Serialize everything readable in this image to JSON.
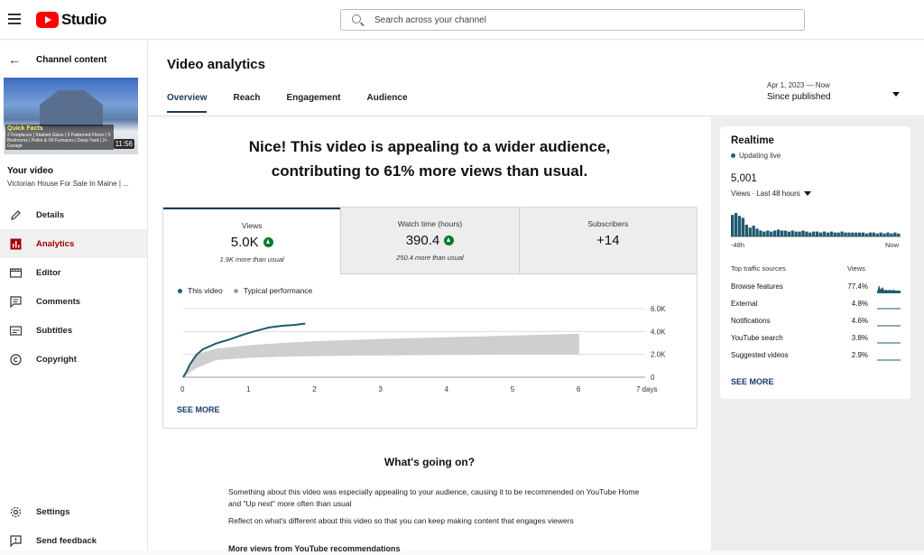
{
  "topbar": {
    "logo_text": "Studio",
    "search_placeholder": "Search across your channel"
  },
  "sidebar": {
    "back_label": "Channel content",
    "thumbnail": {
      "headline": "Quick Facts",
      "details": "2 Fireplaces | Stained Glass | 3 Patterned Floors | 5 Bedrooms | Pellet & Oil Furnaces | Deep Yard | 2+ Garage",
      "duration": "11:56"
    },
    "your_video_label": "Your video",
    "video_title": "Victorian House For Sale In Maine | ...",
    "nav": [
      {
        "label": "Details",
        "icon": "pencil-icon"
      },
      {
        "label": "Analytics",
        "icon": "analytics-icon",
        "active": true
      },
      {
        "label": "Editor",
        "icon": "film-icon"
      },
      {
        "label": "Comments",
        "icon": "comment-icon"
      },
      {
        "label": "Subtitles",
        "icon": "subtitles-icon"
      },
      {
        "label": "Copyright",
        "icon": "copyright-icon"
      }
    ],
    "nav_bottom": [
      {
        "label": "Settings",
        "icon": "gear-icon"
      },
      {
        "label": "Send feedback",
        "icon": "feedback-icon"
      }
    ]
  },
  "header": {
    "title": "Video analytics",
    "tabs": [
      "Overview",
      "Reach",
      "Engagement",
      "Audience"
    ],
    "active_tab": "Overview",
    "date_range_sub": "Apr 1, 2023 — Now",
    "date_range_value": "Since published"
  },
  "main": {
    "headline_line1": "Nice! This video is appealing to a wider audience,",
    "headline_line2": "contributing to 61% more views than usual.",
    "metrics": [
      {
        "label": "Views",
        "value": "5.0K",
        "note": "1.9K more than usual",
        "up": true
      },
      {
        "label": "Watch time (hours)",
        "value": "390.4",
        "note": "250.4 more than usual",
        "up": true
      },
      {
        "label": "Subscribers",
        "value": "+14",
        "note": "",
        "up": false
      }
    ],
    "legend": [
      {
        "name": "This video",
        "color": "#1f5a6e"
      },
      {
        "name": "Typical performance",
        "color": "#9e9e9e"
      }
    ],
    "see_more": "SEE MORE",
    "whats_going_on": "What's going on?",
    "para1": "Something about this video was especially appealing to your audience, causing it to be recommended on YouTube Home and \"Up next\" more often than usual",
    "para2": "Reflect on what's different about this video so that you can keep making content that engages viewers",
    "cut_line": "More views from YouTube recommendations"
  },
  "chart_data": [
    {
      "type": "line",
      "title": "",
      "xlabel": "",
      "ylabel": "",
      "x_ticks": [
        "0",
        "1",
        "2",
        "3",
        "4",
        "5",
        "6",
        "7 days"
      ],
      "y_ticks": [
        "0",
        "2.0K",
        "4.0K",
        "6.0K"
      ],
      "xlim": [
        0,
        7
      ],
      "ylim": [
        0,
        6000
      ],
      "grid": true,
      "legend_position": "top-left",
      "series": [
        {
          "name": "This video",
          "color": "#1f5a6e",
          "x": [
            0,
            0.05,
            0.1,
            0.2,
            0.3,
            0.5,
            0.7,
            0.9,
            1.1,
            1.3,
            1.5,
            1.7,
            1.85
          ],
          "y": [
            0,
            500,
            1100,
            1950,
            2450,
            2950,
            3300,
            3700,
            4050,
            4350,
            4500,
            4580,
            4700
          ]
        },
        {
          "name": "Typical performance",
          "color": "#cfcfcf",
          "type": "band",
          "x": [
            0,
            0.2,
            0.5,
            1,
            1.5,
            2,
            3,
            4,
            5,
            6
          ],
          "lower": [
            0,
            800,
            1500,
            1700,
            1800,
            1850,
            1900,
            1950,
            1980,
            2000
          ],
          "upper": [
            0,
            2000,
            2500,
            2800,
            3000,
            3150,
            3350,
            3500,
            3650,
            3800
          ]
        }
      ]
    },
    {
      "type": "bar",
      "title": "Realtime",
      "subtitle": "Views · Last 48 hours",
      "x_ticks": [
        "-48h",
        "Now"
      ],
      "values": [
        22,
        24,
        21,
        19,
        12,
        9,
        11,
        8,
        6,
        5,
        6,
        5,
        6,
        7,
        6,
        6,
        5,
        6,
        5,
        5,
        6,
        5,
        4,
        5,
        5,
        4,
        5,
        4,
        5,
        4,
        4,
        5,
        4,
        4,
        4,
        4,
        4,
        4,
        3,
        4,
        4,
        3,
        4,
        3,
        4,
        3,
        4,
        3
      ]
    }
  ],
  "realtime": {
    "title": "Realtime",
    "status": "Updating live",
    "views": "5,001",
    "range_label": "Views · Last 48 hours",
    "axis_start": "-48h",
    "axis_end": "Now",
    "traffic_header": "Top traffic sources",
    "traffic_views_header": "Views",
    "traffic": [
      {
        "source": "Browse features",
        "pct": "77.4%"
      },
      {
        "source": "External",
        "pct": "4.8%"
      },
      {
        "source": "Notifications",
        "pct": "4.6%"
      },
      {
        "source": "YouTube search",
        "pct": "3.8%"
      },
      {
        "source": "Suggested videos",
        "pct": "2.9%"
      }
    ],
    "see_more": "SEE MORE"
  }
}
